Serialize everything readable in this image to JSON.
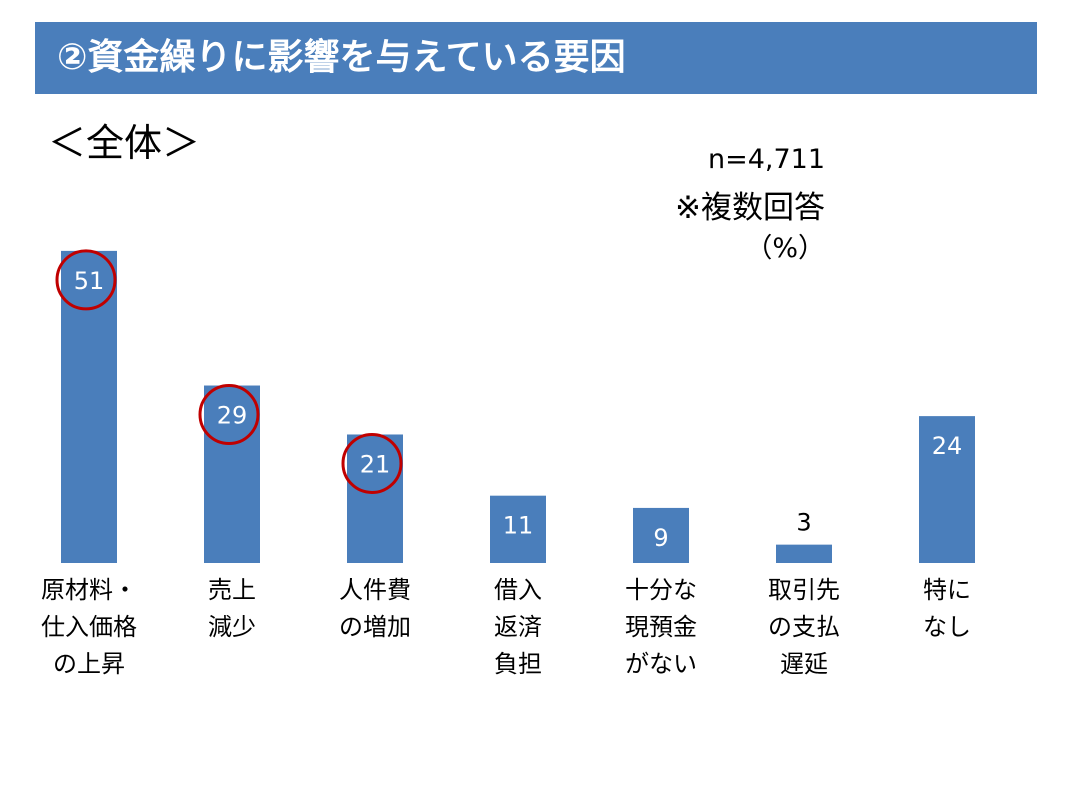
{
  "header": {
    "title": "②資金繰りに影響を与えている要因",
    "subtitle": "＜全体＞"
  },
  "notes": {
    "n": "n=4,711",
    "multiple": "※複数回答",
    "unit": "（%）"
  },
  "colors": {
    "bar": "#4a7ebb",
    "header": "#4a7ebb",
    "highlight_circle": "#c00000"
  },
  "chart_data": {
    "type": "bar",
    "categories": [
      [
        "原材料・",
        "仕入価格",
        "の上昇"
      ],
      [
        "売上",
        "減少"
      ],
      [
        "人件費",
        "の増加"
      ],
      [
        "借入",
        "返済",
        "負担"
      ],
      [
        "十分な",
        "現預金",
        "がない"
      ],
      [
        "取引先",
        "の支払",
        "遅延"
      ],
      [
        "特に",
        "なし"
      ]
    ],
    "values": [
      51,
      29,
      21,
      11,
      9,
      3,
      24
    ],
    "highlighted": [
      true,
      true,
      true,
      false,
      false,
      false,
      false
    ],
    "title": "",
    "xlabel": "",
    "ylabel": ""
  }
}
